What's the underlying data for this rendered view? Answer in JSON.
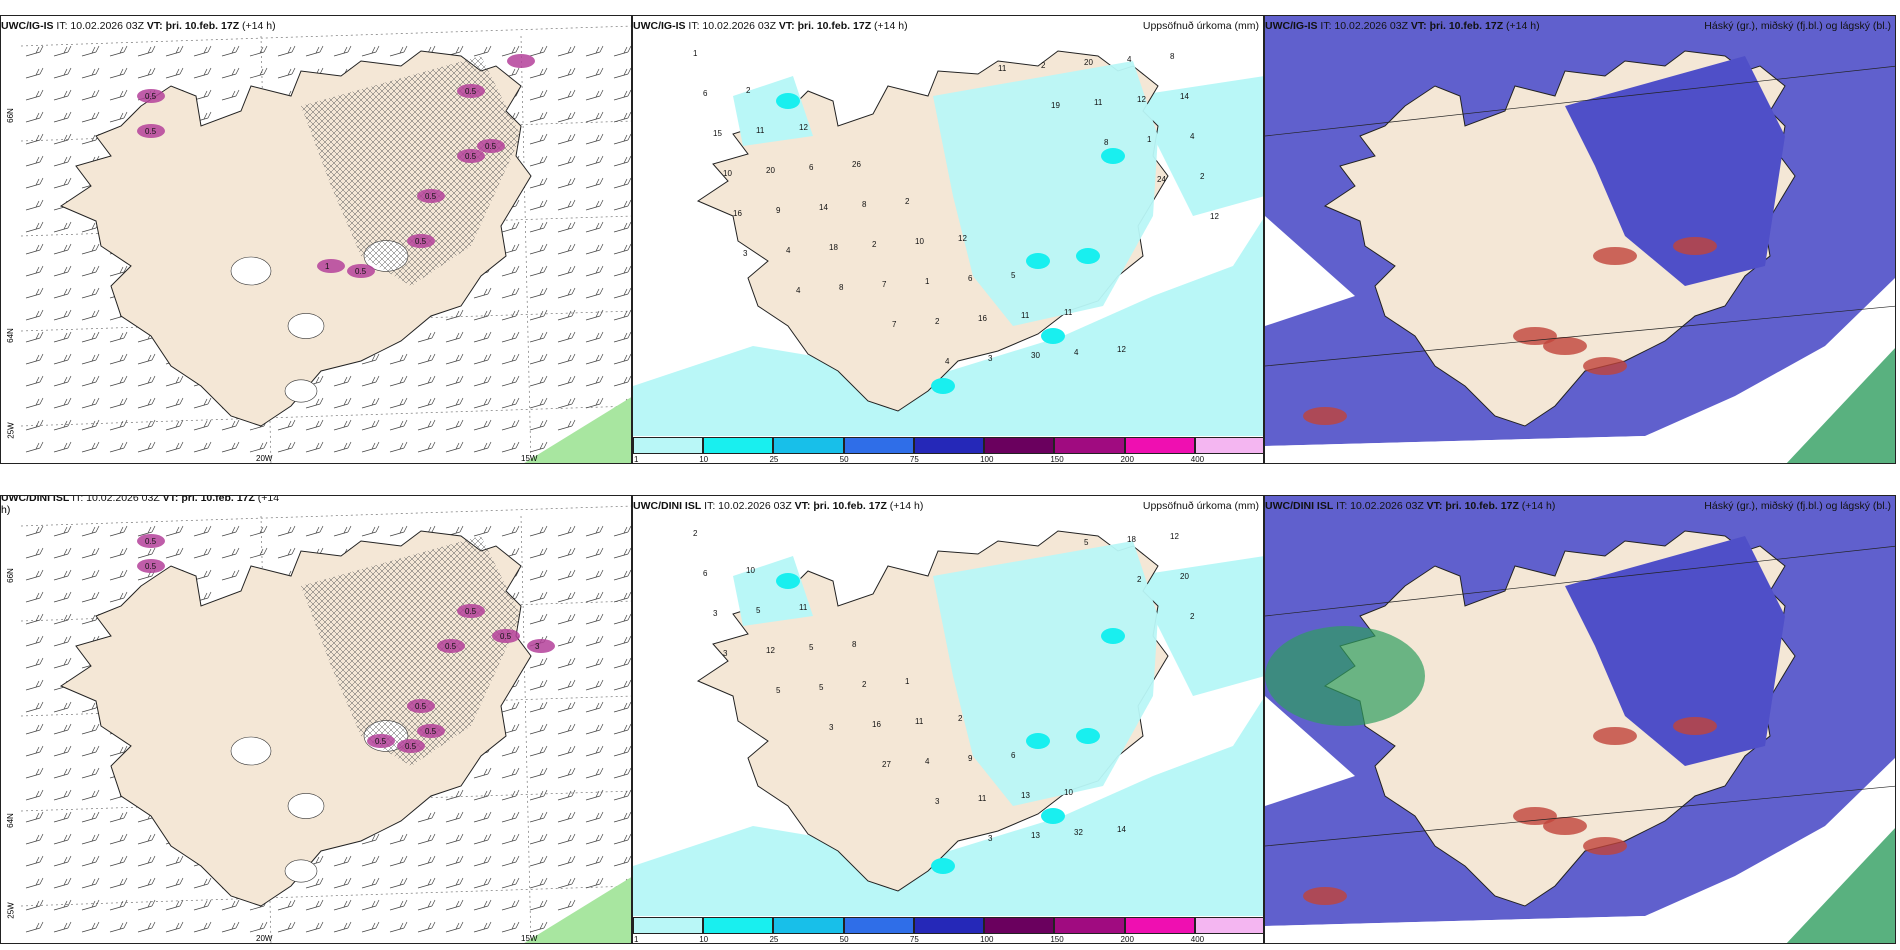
{
  "rows": [
    {
      "model_full": "UWC/IG-IS",
      "model_short": "UWC/IG-IS",
      "it_label": "IT: 10.02.2026 03Z",
      "vt_label": "VT: þri. 10.feb. 17Z",
      "lead": "(+14 h)"
    },
    {
      "model_full": "UWC/DINI ISL",
      "model_short": "UWC/DINI ISL",
      "it_label": "IT: 10.02.2026 03Z",
      "vt_label": "VT: þri. 10.feb. 17Z",
      "lead": "(+14",
      "lead_wrap": "h)"
    }
  ],
  "right_title_1": "Uppsöfnuð úrkoma (mm)",
  "right_title_2": "Háský (gr.), miðský (fj.bl.) og lágský (bl.)",
  "axes": {
    "lat_66": "66N",
    "lat_64": "64N",
    "lat_25w_label": "25W",
    "lon_20": "20W",
    "lon_15": "15W"
  },
  "legend": {
    "ticks": [
      "1",
      "10",
      "25",
      "50",
      "75",
      "100",
      "150",
      "200",
      "400"
    ],
    "colors": [
      "#b9f7f7",
      "#19efef",
      "#18bfe9",
      "#2f6ee8",
      "#2528b8",
      "#6a005e",
      "#a00b80",
      "#ef0fb1",
      "#f4b6f1"
    ]
  },
  "colors": {
    "land": "#f4e7d6",
    "coast": "#222222",
    "snow": "#b4419a",
    "precip_light": "#b9f7f7",
    "precip_mid": "#19efef",
    "cloud_high": "#4f4fc8",
    "cloud_mid": "#2f9e5f",
    "cloud_low": "#c0443a",
    "wind_green": "#a8e6a0"
  },
  "values_top": {
    "snow_labels": [
      "0.5",
      "0.5",
      "0.5",
      "0.5",
      "0.5",
      "0.5",
      "0.5",
      "1",
      "0.5"
    ],
    "precip_labels": [
      "1",
      "2",
      "12",
      "26",
      "2",
      "12",
      "5",
      "11",
      "12",
      "8",
      "6",
      "11",
      "6",
      "8",
      "10",
      "6",
      "11",
      "4",
      "4",
      "14",
      "15",
      "20",
      "14",
      "2",
      "1",
      "16",
      "30",
      "20",
      "12",
      "4",
      "10",
      "9",
      "18",
      "7",
      "2",
      "3",
      "2",
      "11",
      "1",
      "2",
      "16",
      "4",
      "8",
      "7",
      "4",
      "11",
      "19",
      "8",
      "24",
      "12",
      "3",
      "4"
    ]
  },
  "values_bottom": {
    "snow_labels": [
      "0.5",
      "0.5",
      "0.5",
      "0.5",
      "0.5",
      "0.5",
      "0.5",
      "0.5",
      "0.5",
      "3"
    ],
    "precip_labels": [
      "2",
      "10",
      "11",
      "8",
      "1",
      "2",
      "6",
      "10",
      "14",
      "12",
      "6",
      "5",
      "5",
      "2",
      "11",
      "9",
      "13",
      "32",
      "18",
      "20",
      "3",
      "12",
      "5",
      "16",
      "4",
      "11",
      "13",
      "5",
      "2",
      "2",
      "3",
      "5",
      "3",
      "27",
      "3",
      "3"
    ]
  }
}
